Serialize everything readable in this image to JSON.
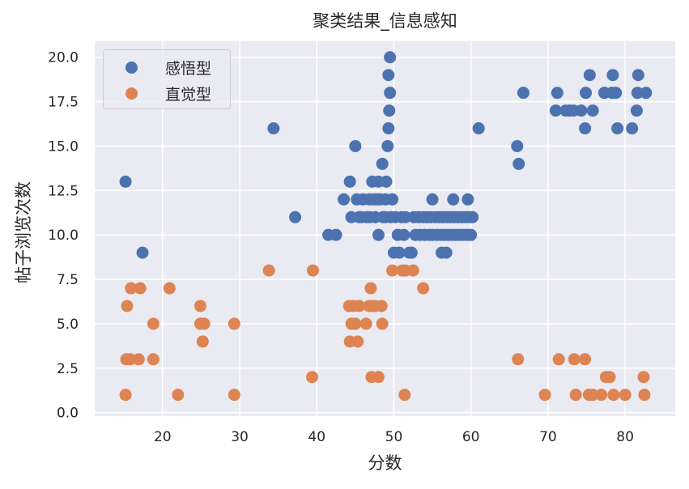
{
  "chart_data": {
    "type": "scatter",
    "title": "聚类结果_信息感知",
    "xlabel": "分数",
    "ylabel": "帖子浏览次数",
    "xlim": [
      11.2,
      86.5
    ],
    "ylim": [
      -0.2,
      20.9
    ],
    "x_ticks": [
      "20",
      "30",
      "40",
      "50",
      "60",
      "70",
      "80"
    ],
    "y_ticks": [
      "0.0",
      "2.5",
      "5.0",
      "7.5",
      "10.0",
      "12.5",
      "15.0",
      "17.5",
      "20.0"
    ],
    "grid": true,
    "legend_position": "upper left",
    "series": [
      {
        "name": "感悟型",
        "color": "#4c72b0",
        "points": [
          [
            15.2,
            13
          ],
          [
            17.4,
            9
          ],
          [
            34.4,
            16
          ],
          [
            37.2,
            11
          ],
          [
            41.5,
            10
          ],
          [
            42.5,
            10
          ],
          [
            43.5,
            12
          ],
          [
            44.3,
            13
          ],
          [
            44.5,
            11
          ],
          [
            45.0,
            15
          ],
          [
            45.2,
            12
          ],
          [
            45.5,
            11
          ],
          [
            45.8,
            11
          ],
          [
            46.0,
            12
          ],
          [
            46.5,
            11
          ],
          [
            46.8,
            12
          ],
          [
            46.9,
            11
          ],
          [
            47.2,
            13
          ],
          [
            47.4,
            12
          ],
          [
            47.6,
            11
          ],
          [
            47.8,
            12
          ],
          [
            48.0,
            13
          ],
          [
            48.0,
            10
          ],
          [
            48.2,
            12
          ],
          [
            48.5,
            14
          ],
          [
            48.6,
            11
          ],
          [
            48.9,
            12
          ],
          [
            48.9,
            11
          ],
          [
            49.0,
            13
          ],
          [
            49.2,
            15
          ],
          [
            49.3,
            16
          ],
          [
            49.3,
            19
          ],
          [
            49.4,
            17
          ],
          [
            49.5,
            20
          ],
          [
            49.5,
            18
          ],
          [
            49.6,
            11
          ],
          [
            49.8,
            12
          ],
          [
            50.0,
            9
          ],
          [
            50.2,
            11
          ],
          [
            50.5,
            10
          ],
          [
            50.7,
            9
          ],
          [
            51.0,
            11
          ],
          [
            51.3,
            10
          ],
          [
            51.5,
            11
          ],
          [
            52.0,
            9
          ],
          [
            52.3,
            9
          ],
          [
            52.6,
            11
          ],
          [
            52.8,
            10
          ],
          [
            53.2,
            11
          ],
          [
            53.4,
            10
          ],
          [
            53.8,
            11
          ],
          [
            54.0,
            10
          ],
          [
            54.3,
            11
          ],
          [
            54.6,
            10
          ],
          [
            54.8,
            11
          ],
          [
            55.0,
            12
          ],
          [
            55.0,
            10
          ],
          [
            55.4,
            11
          ],
          [
            55.6,
            10
          ],
          [
            55.9,
            11
          ],
          [
            56.1,
            10
          ],
          [
            56.2,
            9
          ],
          [
            56.4,
            11
          ],
          [
            56.6,
            10
          ],
          [
            56.8,
            9
          ],
          [
            56.9,
            11
          ],
          [
            57.1,
            10
          ],
          [
            57.3,
            11
          ],
          [
            57.6,
            10
          ],
          [
            57.7,
            12
          ],
          [
            57.8,
            11
          ],
          [
            58.0,
            10
          ],
          [
            58.3,
            11
          ],
          [
            58.5,
            10
          ],
          [
            58.8,
            11
          ],
          [
            59.0,
            10
          ],
          [
            59.3,
            11
          ],
          [
            59.5,
            10
          ],
          [
            59.6,
            12
          ],
          [
            59.8,
            11
          ],
          [
            60.0,
            10
          ],
          [
            60.2,
            11
          ],
          [
            61.0,
            16
          ],
          [
            66.0,
            15
          ],
          [
            66.2,
            14
          ],
          [
            66.8,
            18
          ],
          [
            71.0,
            17
          ],
          [
            71.2,
            18
          ],
          [
            72.3,
            17
          ],
          [
            72.8,
            17
          ],
          [
            73.3,
            17
          ],
          [
            74.3,
            17
          ],
          [
            74.8,
            16
          ],
          [
            74.9,
            18
          ],
          [
            75.4,
            19
          ],
          [
            75.8,
            17
          ],
          [
            77.3,
            18
          ],
          [
            78.3,
            18
          ],
          [
            78.4,
            19
          ],
          [
            78.8,
            18
          ],
          [
            79.0,
            16
          ],
          [
            80.9,
            16
          ],
          [
            81.5,
            17
          ],
          [
            81.6,
            18
          ],
          [
            81.7,
            19
          ],
          [
            82.7,
            18
          ]
        ]
      },
      {
        "name": "直觉型",
        "color": "#dd8452",
        "points": [
          [
            15.2,
            1
          ],
          [
            15.3,
            3
          ],
          [
            15.4,
            6
          ],
          [
            15.8,
            3
          ],
          [
            15.9,
            7
          ],
          [
            16.9,
            3
          ],
          [
            17.1,
            7
          ],
          [
            18.8,
            5
          ],
          [
            18.8,
            3
          ],
          [
            20.9,
            7
          ],
          [
            22.0,
            1
          ],
          [
            24.9,
            6
          ],
          [
            24.9,
            5
          ],
          [
            25.2,
            4
          ],
          [
            25.4,
            5
          ],
          [
            29.3,
            5
          ],
          [
            29.3,
            1
          ],
          [
            33.8,
            8
          ],
          [
            39.5,
            8
          ],
          [
            39.4,
            2
          ],
          [
            44.2,
            6
          ],
          [
            44.3,
            4
          ],
          [
            44.5,
            5
          ],
          [
            44.8,
            6
          ],
          [
            45.0,
            5
          ],
          [
            45.3,
            4
          ],
          [
            45.5,
            6
          ],
          [
            46.4,
            5
          ],
          [
            46.8,
            6
          ],
          [
            47.0,
            7
          ],
          [
            47.1,
            2
          ],
          [
            47.3,
            6
          ],
          [
            47.6,
            6
          ],
          [
            48.0,
            2
          ],
          [
            48.4,
            6
          ],
          [
            48.5,
            5
          ],
          [
            49.8,
            8
          ],
          [
            51.1,
            8
          ],
          [
            51.5,
            8
          ],
          [
            51.4,
            1
          ],
          [
            52.5,
            8
          ],
          [
            53.8,
            7
          ],
          [
            66.1,
            3
          ],
          [
            69.6,
            1
          ],
          [
            71.4,
            3
          ],
          [
            73.4,
            3
          ],
          [
            73.6,
            1
          ],
          [
            74.8,
            3
          ],
          [
            75.3,
            1
          ],
          [
            75.8,
            1
          ],
          [
            76.9,
            1
          ],
          [
            77.5,
            2
          ],
          [
            78.0,
            2
          ],
          [
            78.5,
            1
          ],
          [
            80.0,
            1
          ],
          [
            82.4,
            2
          ],
          [
            82.5,
            1
          ]
        ]
      }
    ]
  },
  "style": {
    "plot_background": "#eaeaf2",
    "grid_color": "#ffffff",
    "marker_radius": 7.5
  }
}
